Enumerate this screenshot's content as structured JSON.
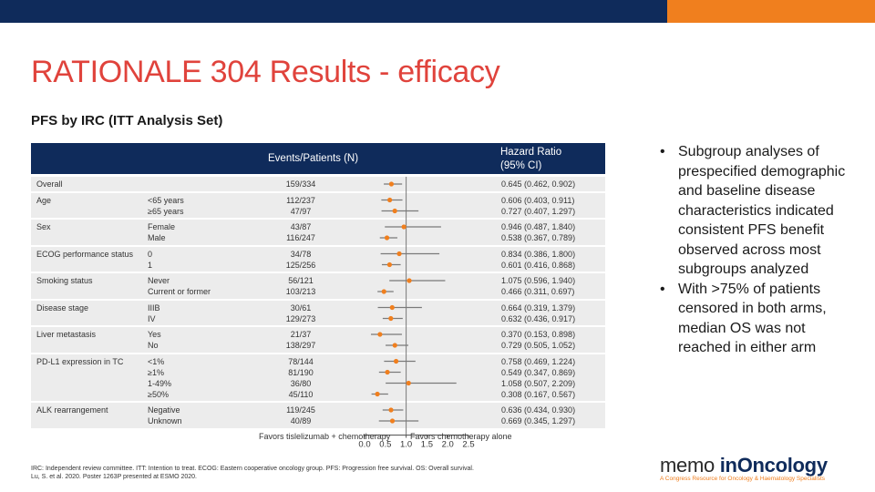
{
  "colors": {
    "navy": "#0f2b5b",
    "orange": "#f07f1e",
    "title_red": "#e0433c",
    "marker": "#f07f1e",
    "row_bg": "#ececec"
  },
  "slide": {
    "title": "RATIONALE 304 Results - efficacy",
    "subtitle": "PFS by IRC (ITT Analysis Set)"
  },
  "table": {
    "header_events": "Events/Patients (N)",
    "header_hr_line1": "Hazard Ratio",
    "header_hr_line2": "(95% CI)",
    "axis_ticks": [
      "0.0",
      "0.5",
      "1.0",
      "1.5",
      "2.0",
      "2.5"
    ],
    "favors_left": "Favors tislelizumab + chemotherapy",
    "favors_right": "Favors chemotherapy alone",
    "groups": [
      {
        "category": "Overall",
        "levels": [
          ""
        ],
        "events": [
          "159/334"
        ],
        "hr_text": [
          "0.645 (0.462, 0.902)"
        ]
      },
      {
        "category": "Age",
        "levels": [
          "<65 years",
          "≥65 years"
        ],
        "events": [
          "112/237",
          "47/97"
        ],
        "hr_text": [
          "0.606 (0.403, 0.911)",
          "0.727 (0.407, 1.297)"
        ]
      },
      {
        "category": "Sex",
        "levels": [
          "Female",
          "Male"
        ],
        "events": [
          "43/87",
          "116/247"
        ],
        "hr_text": [
          "0.946 (0.487, 1.840)",
          "0.538 (0.367, 0.789)"
        ]
      },
      {
        "category": "ECOG performance status",
        "levels": [
          "0",
          "1"
        ],
        "events": [
          "34/78",
          "125/256"
        ],
        "hr_text": [
          "0.834 (0.386, 1.800)",
          "0.601 (0.416, 0.868)"
        ]
      },
      {
        "category": "Smoking status",
        "levels": [
          "Never",
          "Current or former"
        ],
        "events": [
          "56/121",
          "103/213"
        ],
        "hr_text": [
          "1.075 (0.596, 1.940)",
          "0.466 (0.311, 0.697)"
        ]
      },
      {
        "category": "Disease stage",
        "levels": [
          "IIIB",
          "IV"
        ],
        "events": [
          "30/61",
          "129/273"
        ],
        "hr_text": [
          "0.664 (0.319, 1.379)",
          "0.632 (0.436, 0.917)"
        ]
      },
      {
        "category": "Liver metastasis",
        "levels": [
          "Yes",
          "No"
        ],
        "events": [
          "21/37",
          "138/297"
        ],
        "hr_text": [
          "0.370 (0.153, 0.898)",
          "0.729 (0.505, 1.052)"
        ]
      },
      {
        "category": "PD-L1 expression in TC",
        "levels": [
          "<1%",
          "≥1%",
          "1-49%",
          "≥50%"
        ],
        "events": [
          "78/144",
          "81/190",
          "36/80",
          "45/110"
        ],
        "hr_text": [
          "0.758 (0.469, 1.224)",
          "0.549 (0.347, 0.869)",
          "1.058 (0.507, 2.209)",
          "0.308 (0.167, 0.567)"
        ]
      },
      {
        "category": "ALK rearrangement",
        "levels": [
          "Negative",
          "Unknown"
        ],
        "events": [
          "119/245",
          "40/89"
        ],
        "hr_text": [
          "0.636 (0.434, 0.930)",
          "0.669 (0.345, 1.297)"
        ]
      }
    ]
  },
  "chart_data": {
    "type": "forest",
    "x_range": [
      0,
      2.5
    ],
    "reference_line": 1.0,
    "estimates": [
      {
        "hr": 0.645,
        "lo": 0.462,
        "hi": 0.902
      },
      {
        "hr": 0.606,
        "lo": 0.403,
        "hi": 0.911
      },
      {
        "hr": 0.727,
        "lo": 0.407,
        "hi": 1.297
      },
      {
        "hr": 0.946,
        "lo": 0.487,
        "hi": 1.84
      },
      {
        "hr": 0.538,
        "lo": 0.367,
        "hi": 0.789
      },
      {
        "hr": 0.834,
        "lo": 0.386,
        "hi": 1.8
      },
      {
        "hr": 0.601,
        "lo": 0.416,
        "hi": 0.868
      },
      {
        "hr": 1.075,
        "lo": 0.596,
        "hi": 1.94
      },
      {
        "hr": 0.466,
        "lo": 0.311,
        "hi": 0.697
      },
      {
        "hr": 0.664,
        "lo": 0.319,
        "hi": 1.379
      },
      {
        "hr": 0.632,
        "lo": 0.436,
        "hi": 0.917
      },
      {
        "hr": 0.37,
        "lo": 0.153,
        "hi": 0.898
      },
      {
        "hr": 0.729,
        "lo": 0.505,
        "hi": 1.052
      },
      {
        "hr": 0.758,
        "lo": 0.469,
        "hi": 1.224
      },
      {
        "hr": 0.549,
        "lo": 0.347,
        "hi": 0.869
      },
      {
        "hr": 1.058,
        "lo": 0.507,
        "hi": 2.209
      },
      {
        "hr": 0.308,
        "lo": 0.167,
        "hi": 0.567
      },
      {
        "hr": 0.636,
        "lo": 0.434,
        "hi": 0.93
      },
      {
        "hr": 0.669,
        "lo": 0.345,
        "hi": 1.297
      }
    ]
  },
  "bullets": [
    "Subgroup analyses of prespecified demographic and baseline disease characteristics indicated consistent PFS benefit observed across most subgroups analyzed",
    "With >75% of patients censored in both arms, median OS was not reached in either arm"
  ],
  "footnote": {
    "line1": "IRC: Independent review committee. ITT: Intention to treat. ECOG: Eastern cooperative oncology group. PFS: Progression free survival. OS: Overall survival.",
    "line2": "Lu, S. et al. 2020. Poster 1263P presented at ESMO 2020."
  },
  "logo": {
    "memo": "memo",
    "inoncology": "inOncology",
    "tagline": "A Congress Resource for Oncology & Haematology Specialists"
  }
}
